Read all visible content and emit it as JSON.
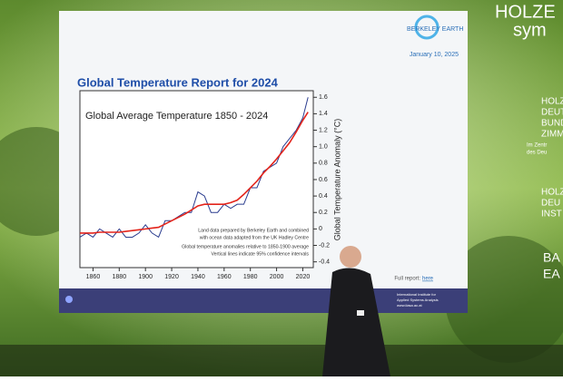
{
  "slide": {
    "heading": "Global Temperature Report for 2024",
    "logo": "BERKELEY EARTH",
    "date": "January 10, 2025",
    "footer_label": "Full report:",
    "footer_link": "here",
    "sponsor": [
      "International Institute for",
      "Applied Systems Analysis",
      "www.iiasa.ac.at"
    ]
  },
  "wall_text": [
    "HOLZE",
    "sym",
    "HOLZ",
    "DEUT",
    "BUND",
    "ZIMM",
    "Im Zentr",
    "des Deu",
    "HOLZ",
    "DEU",
    "INST",
    "BA",
    "EA"
  ],
  "chart_data": {
    "type": "line",
    "title": "Global Average Temperature 1850 - 2024",
    "y_label": "Global Temperature Anomaly (°C)",
    "annotations": [
      "Land data prepared by Berkeley Earth and combined",
      "with ocean data adapted from the UK Hadley Centre",
      "Global temperature anomalies relative to 1850-1900 average",
      "Vertical lines indicate 95% confidence intervals"
    ],
    "x": [
      1850,
      1855,
      1860,
      1865,
      1870,
      1875,
      1880,
      1885,
      1890,
      1895,
      1900,
      1905,
      1910,
      1915,
      1920,
      1925,
      1930,
      1935,
      1940,
      1945,
      1950,
      1955,
      1960,
      1965,
      1970,
      1975,
      1980,
      1985,
      1990,
      1995,
      2000,
      2005,
      2010,
      2015,
      2020,
      2024
    ],
    "series": [
      {
        "color": "#2b3d8f",
        "values": [
          -0.1,
          -0.05,
          -0.1,
          0.0,
          -0.05,
          -0.1,
          0.0,
          -0.1,
          -0.1,
          -0.05,
          0.05,
          -0.05,
          -0.1,
          0.1,
          0.1,
          0.15,
          0.2,
          0.2,
          0.45,
          0.4,
          0.2,
          0.2,
          0.3,
          0.25,
          0.3,
          0.3,
          0.5,
          0.5,
          0.7,
          0.75,
          0.8,
          1.0,
          1.1,
          1.2,
          1.35,
          1.6
        ]
      },
      {
        "color": "#e3241b",
        "values": [
          -0.05,
          -0.05,
          -0.05,
          -0.04,
          -0.04,
          -0.04,
          -0.04,
          -0.03,
          -0.02,
          -0.01,
          0.0,
          0.01,
          0.02,
          0.06,
          0.1,
          0.14,
          0.18,
          0.23,
          0.28,
          0.3,
          0.3,
          0.3,
          0.3,
          0.32,
          0.35,
          0.42,
          0.5,
          0.58,
          0.68,
          0.76,
          0.85,
          0.95,
          1.05,
          1.18,
          1.32,
          1.42
        ]
      }
    ],
    "xlim": [
      1850,
      2028
    ],
    "xticks": [
      1860,
      1880,
      1900,
      1920,
      1940,
      1960,
      1980,
      2000,
      2020
    ],
    "ylim": [
      -0.47,
      1.68
    ],
    "yticks": [
      -0.4,
      -0.2,
      0,
      0.2,
      0.4,
      0.6,
      0.8,
      {
        "value": 1,
        "label": "1.0"
      },
      1.2,
      1.4,
      1.6
    ]
  }
}
